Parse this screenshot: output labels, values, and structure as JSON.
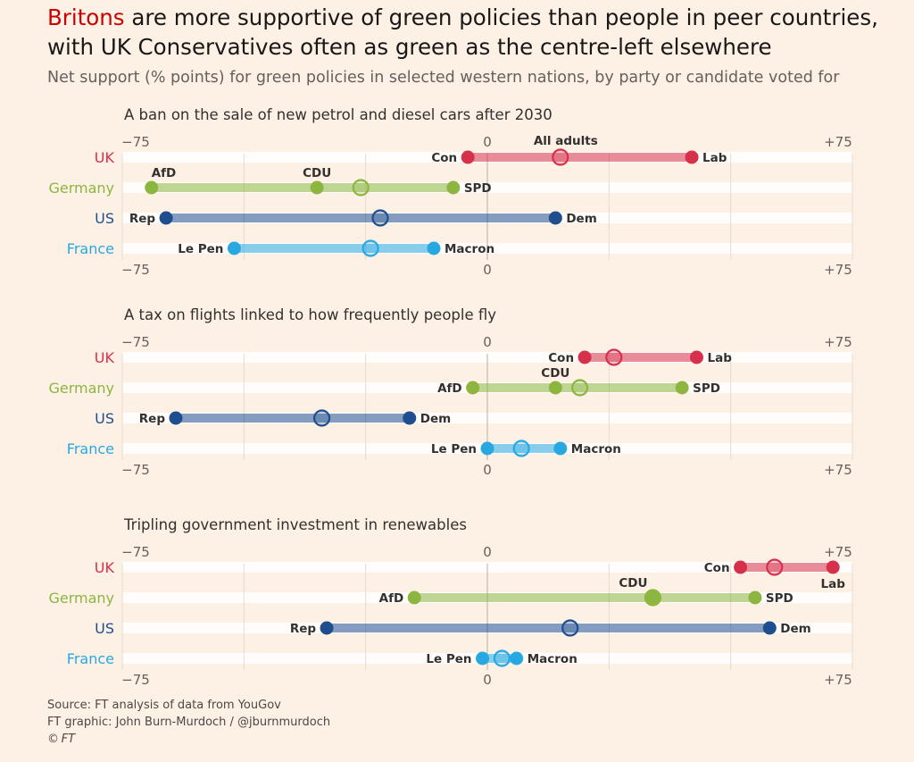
{
  "header": {
    "title_highlight": "Britons",
    "title_rest": " are more supportive of green policies than people in peer countries, with UK Conservatives often as green as the centre-left elsewhere",
    "subtitle": "Net support (% points) for green policies in selected western nations, by party or candidate voted for"
  },
  "footer": {
    "source": "Source: FT analysis of data from YouGov",
    "graphic": "FT graphic: John Burn-Murdoch / @jburnmurdoch",
    "copyright_symbol": "©",
    "copyright_text": "FT"
  },
  "colors": {
    "UK": "#d6304b",
    "Germany": "#8cb640",
    "US": "#1f4e8e",
    "France": "#28a8e0",
    "background": "#fdf1e6"
  },
  "chart_data": [
    {
      "type": "dot-range",
      "title": "A ban on the sale of new petrol and diesel cars after 2030",
      "xlim": [
        -75,
        75
      ],
      "tick_labels": [
        "−75",
        "0",
        "+75"
      ],
      "annotation": "All adults",
      "rows": [
        {
          "country": "UK",
          "points": [
            {
              "label": "Con",
              "value": -4
            },
            {
              "label": "Lab",
              "value": 42
            }
          ],
          "all_adults": 15
        },
        {
          "country": "Germany",
          "points": [
            {
              "label": "AfD",
              "value": -69
            },
            {
              "label": "CDU",
              "value": -35
            },
            {
              "label": "SPD",
              "value": -7
            }
          ],
          "all_adults": -26
        },
        {
          "country": "US",
          "points": [
            {
              "label": "Rep",
              "value": -66
            },
            {
              "label": "Dem",
              "value": 14
            }
          ],
          "all_adults": -22
        },
        {
          "country": "France",
          "points": [
            {
              "label": "Le Pen",
              "value": -52
            },
            {
              "label": "Macron",
              "value": -11
            }
          ],
          "all_adults": -24
        }
      ]
    },
    {
      "type": "dot-range",
      "title": "A tax on flights linked to how frequently people fly",
      "xlim": [
        -75,
        75
      ],
      "tick_labels": [
        "−75",
        "0",
        "+75"
      ],
      "rows": [
        {
          "country": "UK",
          "points": [
            {
              "label": "Con",
              "value": 20
            },
            {
              "label": "Lab",
              "value": 43
            }
          ],
          "all_adults": 26
        },
        {
          "country": "Germany",
          "points": [
            {
              "label": "AfD",
              "value": -3
            },
            {
              "label": "CDU",
              "value": 14
            },
            {
              "label": "SPD",
              "value": 40
            }
          ],
          "all_adults": 19
        },
        {
          "country": "US",
          "points": [
            {
              "label": "Rep",
              "value": -64
            },
            {
              "label": "Dem",
              "value": -16
            }
          ],
          "all_adults": -34
        },
        {
          "country": "France",
          "points": [
            {
              "label": "Le Pen",
              "value": 0
            },
            {
              "label": "Macron",
              "value": 15
            }
          ],
          "all_adults": 7
        }
      ]
    },
    {
      "type": "dot-range",
      "title": "Tripling government investment in renewables",
      "xlim": [
        -75,
        75
      ],
      "tick_labels": [
        "−75",
        "0",
        "+75"
      ],
      "rows": [
        {
          "country": "UK",
          "points": [
            {
              "label": "Con",
              "value": 52
            },
            {
              "label": "Lab",
              "value": 71
            }
          ],
          "all_adults": 59
        },
        {
          "country": "Germany",
          "points": [
            {
              "label": "AfD",
              "value": -15
            },
            {
              "label": "CDU",
              "value": 34
            },
            {
              "label": "SPD",
              "value": 55
            }
          ],
          "all_adults": 34
        },
        {
          "country": "US",
          "points": [
            {
              "label": "Rep",
              "value": -33
            },
            {
              "label": "Dem",
              "value": 58
            }
          ],
          "all_adults": 17
        },
        {
          "country": "France",
          "points": [
            {
              "label": "Le Pen",
              "value": -1
            },
            {
              "label": "Macron",
              "value": 6
            }
          ],
          "all_adults": 3
        }
      ]
    }
  ]
}
